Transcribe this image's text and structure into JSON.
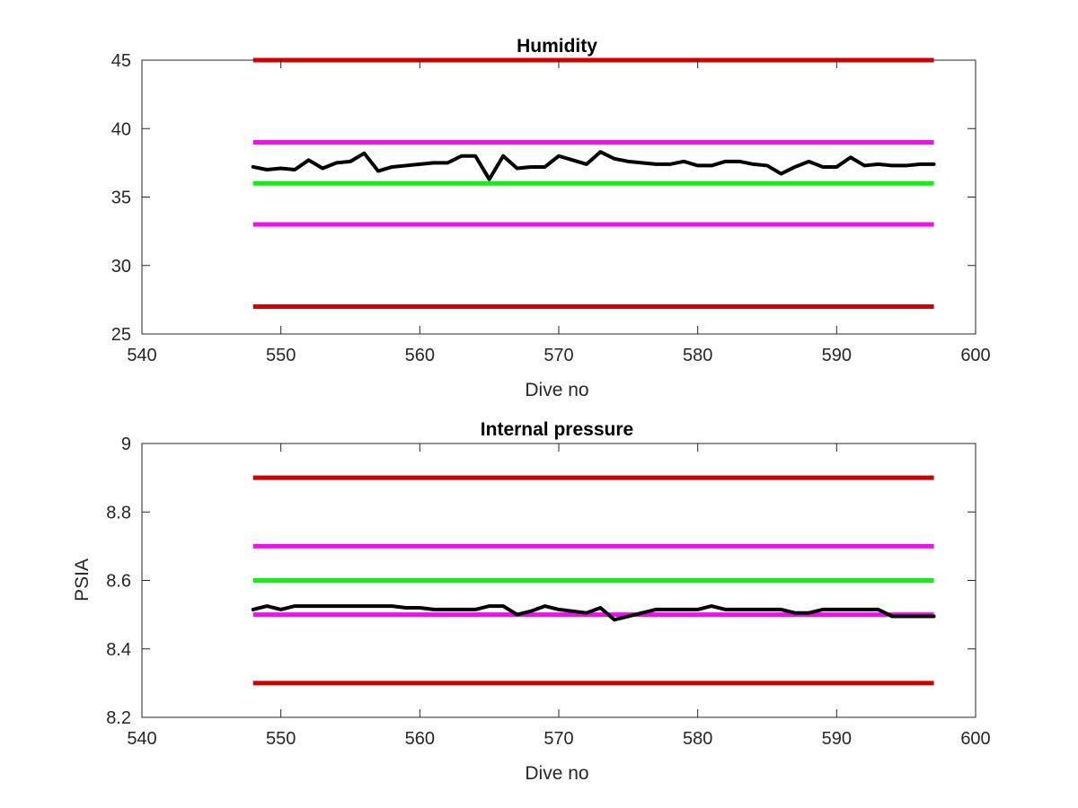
{
  "chart_data": [
    {
      "type": "line",
      "title": "Humidity",
      "xlabel": "Dive no",
      "ylabel": "",
      "xlim": [
        540,
        600
      ],
      "ylim": [
        25,
        45
      ],
      "xticks": [
        540,
        550,
        560,
        570,
        580,
        590,
        600
      ],
      "yticks": [
        25,
        30,
        35,
        40,
        45
      ],
      "grid": false,
      "reference_lines": [
        {
          "y": 45,
          "x": [
            548,
            597
          ],
          "color": "#cc0000"
        },
        {
          "y": 39,
          "x": [
            548,
            597
          ],
          "color": "#ee11ee"
        },
        {
          "y": 36,
          "x": [
            548,
            597
          ],
          "color": "#11ee11"
        },
        {
          "y": 33,
          "x": [
            548,
            597
          ],
          "color": "#ee11ee"
        },
        {
          "y": 27,
          "x": [
            548,
            597
          ],
          "color": "#cc0000"
        }
      ],
      "series": [
        {
          "color": "#000000",
          "x": [
            548,
            549,
            550,
            551,
            552,
            553,
            554,
            555,
            556,
            557,
            558,
            559,
            560,
            561,
            562,
            563,
            564,
            565,
            566,
            567,
            568,
            569,
            570,
            571,
            572,
            573,
            574,
            575,
            576,
            577,
            578,
            579,
            580,
            581,
            582,
            583,
            584,
            585,
            586,
            587,
            588,
            589,
            590,
            591,
            592,
            593,
            594,
            595,
            596,
            597
          ],
          "values": [
            37.2,
            37.0,
            37.1,
            37.0,
            37.7,
            37.1,
            37.5,
            37.6,
            38.2,
            36.9,
            37.2,
            37.3,
            37.4,
            37.5,
            37.5,
            38.0,
            38.0,
            36.3,
            38.0,
            37.1,
            37.2,
            37.2,
            38.0,
            37.7,
            37.4,
            38.3,
            37.8,
            37.6,
            37.5,
            37.4,
            37.4,
            37.6,
            37.3,
            37.3,
            37.6,
            37.6,
            37.4,
            37.3,
            36.7,
            37.2,
            37.6,
            37.2,
            37.2,
            37.9,
            37.3,
            37.4,
            37.3,
            37.3,
            37.4,
            37.4
          ]
        }
      ]
    },
    {
      "type": "line",
      "title": "Internal pressure",
      "xlabel": "Dive no",
      "ylabel": "PSIA",
      "xlim": [
        540,
        600
      ],
      "ylim": [
        8.2,
        9
      ],
      "xticks": [
        540,
        550,
        560,
        570,
        580,
        590,
        600
      ],
      "yticks": [
        8.2,
        8.4,
        8.6,
        8.8,
        9
      ],
      "ytick_labels": [
        "8.2",
        "8.4",
        "8.6",
        "8.8",
        "9"
      ],
      "grid": false,
      "reference_lines": [
        {
          "y": 8.9,
          "x": [
            548,
            597
          ],
          "color": "#cc0000"
        },
        {
          "y": 8.7,
          "x": [
            548,
            597
          ],
          "color": "#ee11ee"
        },
        {
          "y": 8.6,
          "x": [
            548,
            597
          ],
          "color": "#11ee11"
        },
        {
          "y": 8.5,
          "x": [
            548,
            597
          ],
          "color": "#ee11ee"
        },
        {
          "y": 8.3,
          "x": [
            548,
            597
          ],
          "color": "#cc0000"
        }
      ],
      "series": [
        {
          "color": "#000000",
          "x": [
            548,
            549,
            550,
            551,
            552,
            553,
            554,
            555,
            556,
            557,
            558,
            559,
            560,
            561,
            562,
            563,
            564,
            565,
            566,
            567,
            568,
            569,
            570,
            571,
            572,
            573,
            574,
            575,
            576,
            577,
            578,
            579,
            580,
            581,
            582,
            583,
            584,
            585,
            586,
            587,
            588,
            589,
            590,
            591,
            592,
            593,
            594,
            595,
            596,
            597
          ],
          "values": [
            8.515,
            8.525,
            8.515,
            8.525,
            8.525,
            8.525,
            8.525,
            8.525,
            8.525,
            8.525,
            8.525,
            8.52,
            8.52,
            8.515,
            8.515,
            8.515,
            8.515,
            8.525,
            8.525,
            8.5,
            8.51,
            8.525,
            8.515,
            8.51,
            8.505,
            8.52,
            8.485,
            8.495,
            8.505,
            8.515,
            8.515,
            8.515,
            8.515,
            8.525,
            8.515,
            8.515,
            8.515,
            8.515,
            8.515,
            8.505,
            8.505,
            8.515,
            8.515,
            8.515,
            8.515,
            8.515,
            8.495,
            8.495,
            8.495,
            8.495
          ]
        }
      ]
    }
  ]
}
